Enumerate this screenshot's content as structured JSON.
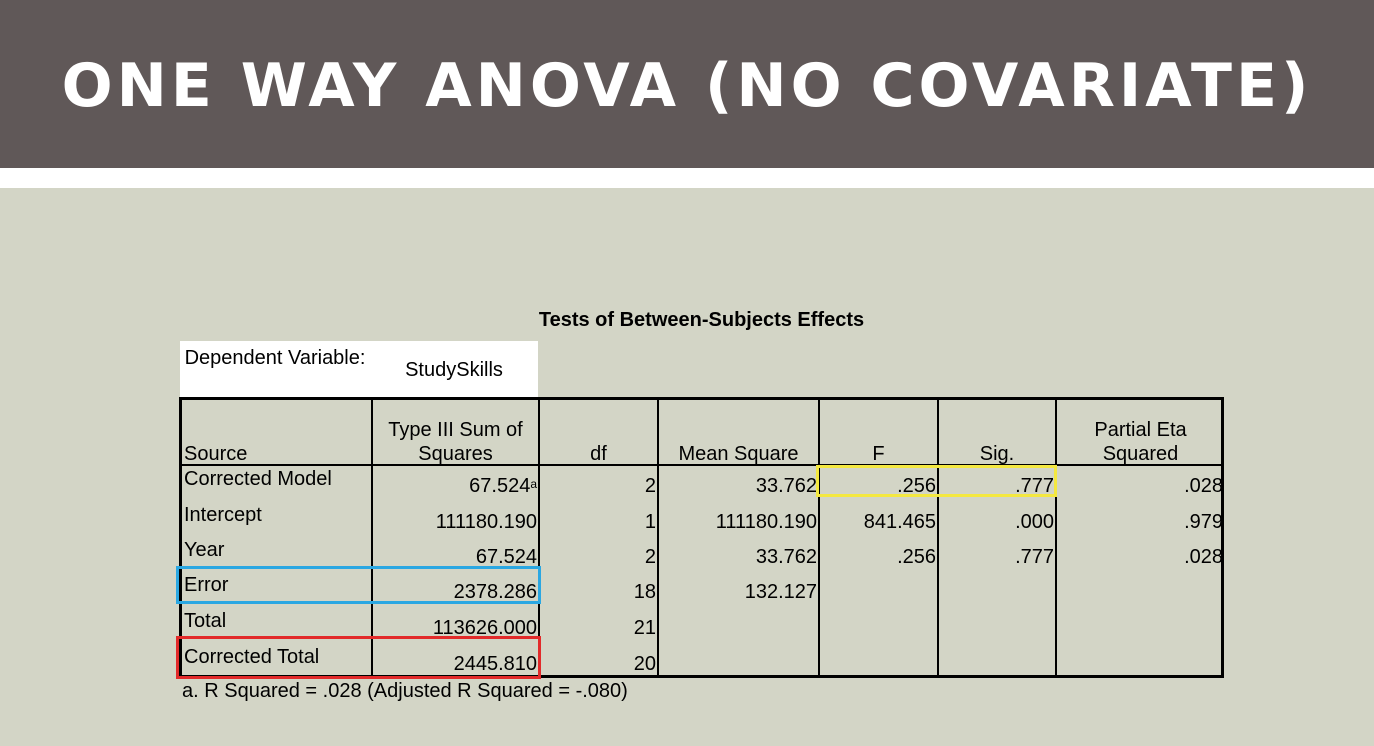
{
  "slide": {
    "title": "ONE WAY ANOVA (NO COVARIATE)"
  },
  "table": {
    "title": "Tests of Between-Subjects Effects",
    "dependent_variable_label": "Dependent Variable:",
    "dependent_variable_value": "StudySkills",
    "headers": {
      "source": "Source",
      "ss_line1": "Type III Sum of",
      "ss_line2": "Squares",
      "df": "df",
      "ms": "Mean Square",
      "f": "F",
      "sig": "Sig.",
      "eta_line1": "Partial Eta",
      "eta_line2": "Squared"
    },
    "rows": [
      {
        "source": "Corrected Model",
        "ss": "67.524",
        "ss_note": "a",
        "df": "2",
        "ms": "33.762",
        "f": ".256",
        "sig": ".777",
        "eta": ".028"
      },
      {
        "source": "Intercept",
        "ss": "111180.190",
        "ss_note": "",
        "df": "1",
        "ms": "111180.190",
        "f": "841.465",
        "sig": ".000",
        "eta": ".979"
      },
      {
        "source": "Year",
        "ss": "67.524",
        "ss_note": "",
        "df": "2",
        "ms": "33.762",
        "f": ".256",
        "sig": ".777",
        "eta": ".028"
      },
      {
        "source": "Error",
        "ss": "2378.286",
        "ss_note": "",
        "df": "18",
        "ms": "132.127",
        "f": "",
        "sig": "",
        "eta": ""
      },
      {
        "source": "Total",
        "ss": "113626.000",
        "ss_note": "",
        "df": "21",
        "ms": "",
        "f": "",
        "sig": "",
        "eta": ""
      },
      {
        "source": "Corrected Total",
        "ss": "2445.810",
        "ss_note": "",
        "df": "20",
        "ms": "",
        "f": "",
        "sig": "",
        "eta": ""
      }
    ],
    "footnote": "a. R Squared = .028 (Adjusted R Squared = -.080)"
  },
  "highlights": {
    "yellow": "#f4e840",
    "blue": "#2aa7e2",
    "red": "#e22a2a"
  }
}
